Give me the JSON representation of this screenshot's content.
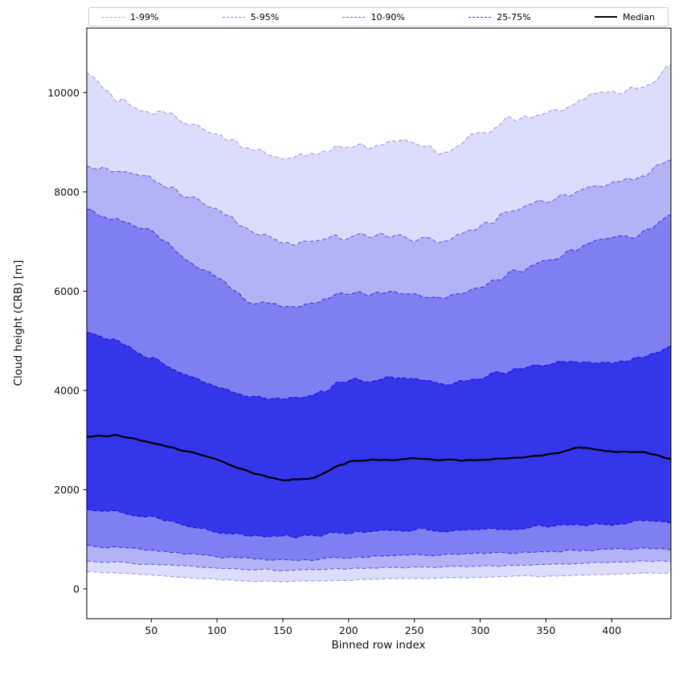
{
  "figure": {
    "background": "#ffffff"
  },
  "chart_data": {
    "type": "area",
    "title": "",
    "xlabel": "Binned row index",
    "ylabel": "Cloud height (CRB) [m]",
    "xlim": [
      1,
      445
    ],
    "ylim": [
      -600,
      11300
    ],
    "xticks": [
      50,
      100,
      150,
      200,
      250,
      300,
      350,
      400
    ],
    "yticks": [
      0,
      2000,
      4000,
      6000,
      8000,
      10000
    ],
    "grid": false,
    "legend_position": "top-outside",
    "base_color": "#0a0ae6",
    "control_x": [
      1,
      25,
      50,
      75,
      100,
      125,
      150,
      175,
      200,
      225,
      250,
      275,
      300,
      325,
      350,
      375,
      400,
      425,
      445
    ],
    "percentiles": {
      "p1": [
        350,
        320,
        280,
        230,
        190,
        160,
        150,
        160,
        180,
        200,
        210,
        220,
        230,
        250,
        260,
        270,
        290,
        320,
        320
      ],
      "p5": [
        550,
        530,
        500,
        460,
        420,
        390,
        380,
        390,
        410,
        430,
        440,
        450,
        460,
        470,
        490,
        510,
        530,
        560,
        560
      ],
      "p10": [
        870,
        830,
        780,
        710,
        650,
        610,
        590,
        600,
        630,
        660,
        690,
        700,
        710,
        730,
        750,
        780,
        800,
        820,
        800
      ],
      "p25": [
        1600,
        1550,
        1450,
        1300,
        1150,
        1080,
        1050,
        1080,
        1120,
        1180,
        1200,
        1180,
        1200,
        1230,
        1260,
        1300,
        1320,
        1400,
        1350
      ],
      "p50": [
        3050,
        3100,
        2950,
        2780,
        2620,
        2350,
        2180,
        2250,
        2570,
        2600,
        2620,
        2600,
        2600,
        2650,
        2700,
        2850,
        2760,
        2770,
        2600
      ],
      "p75": [
        5200,
        4950,
        4650,
        4300,
        4050,
        3850,
        3800,
        3950,
        4200,
        4250,
        4250,
        4150,
        4250,
        4400,
        4550,
        4600,
        4550,
        4700,
        4850
      ],
      "p90": [
        7650,
        7450,
        7150,
        6650,
        6250,
        5800,
        5700,
        5750,
        5950,
        5950,
        5950,
        5900,
        6100,
        6400,
        6600,
        6900,
        7050,
        7200,
        7500
      ],
      "p95": [
        8600,
        8400,
        8300,
        7950,
        7650,
        7250,
        6950,
        7000,
        7100,
        7150,
        7100,
        7050,
        7300,
        7600,
        7800,
        8000,
        8200,
        8350,
        8700
      ],
      "p99": [
        10450,
        9850,
        9650,
        9400,
        9150,
        8850,
        8700,
        8750,
        8950,
        9000,
        8950,
        8850,
        9250,
        9450,
        9600,
        9850,
        10050,
        10050,
        10650
      ]
    },
    "bands": [
      {
        "label": "1-99%",
        "lower": "p1",
        "upper": "p99",
        "fill_alpha": 0.14,
        "edge_alpha": 0.35
      },
      {
        "label": "5-95%",
        "lower": "p5",
        "upper": "p95",
        "fill_alpha": 0.2,
        "edge_alpha": 0.5
      },
      {
        "label": "10-90%",
        "lower": "p10",
        "upper": "p90",
        "fill_alpha": 0.3,
        "edge_alpha": 0.65
      },
      {
        "label": "25-75%",
        "lower": "p25",
        "upper": "p75",
        "fill_alpha": 0.63,
        "edge_alpha": 0.85
      }
    ],
    "median": {
      "label": "Median",
      "series": "p50",
      "color": "#000000",
      "width": 2.2
    },
    "noise_amplitude": {
      "p1": 12,
      "p5": 16,
      "p10": 24,
      "p25": 38,
      "p50": 25,
      "p75": 60,
      "p90": 75,
      "p95": 85,
      "p99": 110
    }
  }
}
